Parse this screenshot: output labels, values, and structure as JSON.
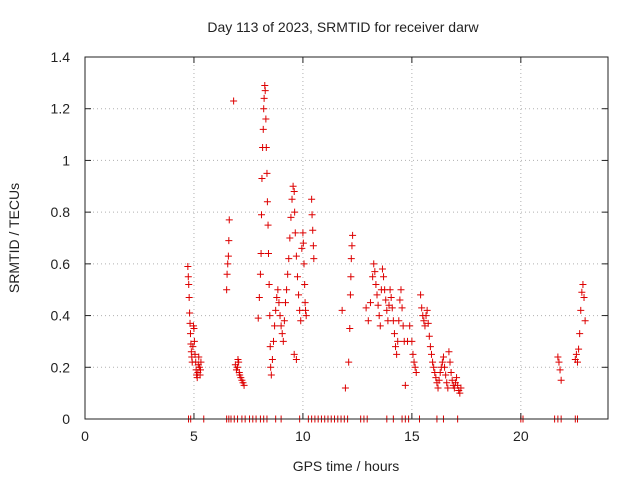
{
  "chart_data": {
    "type": "scatter",
    "title": "Day 113 of 2023, SRMTID for receiver darw",
    "xlabel": "GPS time / hours",
    "ylabel": "SRMTID / TECUs",
    "xlim": [
      0,
      24
    ],
    "ylim": [
      0,
      1.4
    ],
    "xticks": [
      0,
      5,
      10,
      15,
      20
    ],
    "xtick_labels": [
      "0",
      "5",
      "10",
      "15",
      "20"
    ],
    "yticks": [
      0,
      0.2,
      0.4,
      0.6,
      0.8,
      1.0,
      1.2,
      1.4
    ],
    "ytick_labels": [
      "0",
      "0.2",
      "0.4",
      "0.6",
      "0.8",
      "1",
      "1.2",
      "1.4"
    ],
    "grid": true,
    "marker": "+",
    "color": "#dd0000",
    "series": [
      {
        "name": "SRMTID",
        "points": [
          [
            4.72,
            0.59
          ],
          [
            4.74,
            0.55
          ],
          [
            4.76,
            0.52
          ],
          [
            4.78,
            0.47
          ],
          [
            4.8,
            0.41
          ],
          [
            4.82,
            0.37
          ],
          [
            4.84,
            0.33
          ],
          [
            4.86,
            0.29
          ],
          [
            4.88,
            0.26
          ],
          [
            4.9,
            0.24
          ],
          [
            4.92,
            0.22
          ],
          [
            4.95,
            0.28
          ],
          [
            4.98,
            0.36
          ],
          [
            5.0,
            0.35
          ],
          [
            5.02,
            0.3
          ],
          [
            5.05,
            0.25
          ],
          [
            5.08,
            0.22
          ],
          [
            5.1,
            0.19
          ],
          [
            5.12,
            0.17
          ],
          [
            5.15,
            0.16
          ],
          [
            5.18,
            0.18
          ],
          [
            5.2,
            0.21
          ],
          [
            5.22,
            0.24
          ],
          [
            5.25,
            0.2
          ],
          [
            5.28,
            0.17
          ],
          [
            5.3,
            0.19
          ],
          [
            5.32,
            0.22
          ],
          [
            6.5,
            0.5
          ],
          [
            6.52,
            0.56
          ],
          [
            6.55,
            0.6
          ],
          [
            6.58,
            0.63
          ],
          [
            6.6,
            0.69
          ],
          [
            6.62,
            0.77
          ],
          [
            6.82,
            1.23
          ],
          [
            6.9,
            0.21
          ],
          [
            6.95,
            0.19
          ],
          [
            7.0,
            0.2
          ],
          [
            7.02,
            0.23
          ],
          [
            7.05,
            0.22
          ],
          [
            7.08,
            0.18
          ],
          [
            7.1,
            0.17
          ],
          [
            7.15,
            0.16
          ],
          [
            7.2,
            0.15
          ],
          [
            7.25,
            0.14
          ],
          [
            7.3,
            0.13
          ],
          [
            7.95,
            0.39
          ],
          [
            8.0,
            0.47
          ],
          [
            8.05,
            0.56
          ],
          [
            8.08,
            0.64
          ],
          [
            8.1,
            0.79
          ],
          [
            8.12,
            0.93
          ],
          [
            8.15,
            1.05
          ],
          [
            8.18,
            1.12
          ],
          [
            8.2,
            1.2
          ],
          [
            8.22,
            1.24
          ],
          [
            8.25,
            1.29
          ],
          [
            8.27,
            1.27
          ],
          [
            8.3,
            1.16
          ],
          [
            8.32,
            1.05
          ],
          [
            8.35,
            0.95
          ],
          [
            8.37,
            0.84
          ],
          [
            8.4,
            0.75
          ],
          [
            8.42,
            0.64
          ],
          [
            8.45,
            0.52
          ],
          [
            8.48,
            0.4
          ],
          [
            8.5,
            0.28
          ],
          [
            8.52,
            0.2
          ],
          [
            8.55,
            0.17
          ],
          [
            8.6,
            0.23
          ],
          [
            8.65,
            0.3
          ],
          [
            8.7,
            0.36
          ],
          [
            8.75,
            0.42
          ],
          [
            8.8,
            0.47
          ],
          [
            8.85,
            0.5
          ],
          [
            8.9,
            0.45
          ],
          [
            8.95,
            0.4
          ],
          [
            9.0,
            0.36
          ],
          [
            9.05,
            0.33
          ],
          [
            9.1,
            0.3
          ],
          [
            9.15,
            0.38
          ],
          [
            9.2,
            0.45
          ],
          [
            9.25,
            0.5
          ],
          [
            9.3,
            0.56
          ],
          [
            9.35,
            0.62
          ],
          [
            9.4,
            0.7
          ],
          [
            9.45,
            0.78
          ],
          [
            9.5,
            0.85
          ],
          [
            9.55,
            0.9
          ],
          [
            9.6,
            0.88
          ],
          [
            9.62,
            0.8
          ],
          [
            9.65,
            0.72
          ],
          [
            9.7,
            0.63
          ],
          [
            9.75,
            0.55
          ],
          [
            9.8,
            0.48
          ],
          [
            9.85,
            0.42
          ],
          [
            9.9,
            0.38
          ],
          [
            9.95,
            0.66
          ],
          [
            10.0,
            0.72
          ],
          [
            10.02,
            0.68
          ],
          [
            10.05,
            0.6
          ],
          [
            10.08,
            0.52
          ],
          [
            10.1,
            0.45
          ],
          [
            10.12,
            0.42
          ],
          [
            10.15,
            0.4
          ],
          [
            9.6,
            0.25
          ],
          [
            9.7,
            0.23
          ],
          [
            10.4,
            0.85
          ],
          [
            10.42,
            0.79
          ],
          [
            10.45,
            0.73
          ],
          [
            10.48,
            0.67
          ],
          [
            10.5,
            0.62
          ],
          [
            11.8,
            0.42
          ],
          [
            11.95,
            0.12
          ],
          [
            12.1,
            0.22
          ],
          [
            12.15,
            0.35
          ],
          [
            12.18,
            0.48
          ],
          [
            12.2,
            0.55
          ],
          [
            12.22,
            0.62
          ],
          [
            12.25,
            0.67
          ],
          [
            12.28,
            0.71
          ],
          [
            12.9,
            0.43
          ],
          [
            13.0,
            0.38
          ],
          [
            13.1,
            0.45
          ],
          [
            13.2,
            0.55
          ],
          [
            13.25,
            0.6
          ],
          [
            13.3,
            0.57
          ],
          [
            13.35,
            0.52
          ],
          [
            13.4,
            0.48
          ],
          [
            13.45,
            0.44
          ],
          [
            13.5,
            0.4
          ],
          [
            13.55,
            0.36
          ],
          [
            13.6,
            0.5
          ],
          [
            13.65,
            0.58
          ],
          [
            13.7,
            0.55
          ],
          [
            13.75,
            0.5
          ],
          [
            13.8,
            0.46
          ],
          [
            13.85,
            0.42
          ],
          [
            13.9,
            0.38
          ],
          [
            13.95,
            0.44
          ],
          [
            14.0,
            0.5
          ],
          [
            14.05,
            0.47
          ],
          [
            14.1,
            0.43
          ],
          [
            14.15,
            0.38
          ],
          [
            14.2,
            0.33
          ],
          [
            14.25,
            0.28
          ],
          [
            14.3,
            0.25
          ],
          [
            14.35,
            0.3
          ],
          [
            14.4,
            0.38
          ],
          [
            14.45,
            0.46
          ],
          [
            14.5,
            0.5
          ],
          [
            14.55,
            0.43
          ],
          [
            14.6,
            0.36
          ],
          [
            14.65,
            0.3
          ],
          [
            14.7,
            0.13
          ],
          [
            14.8,
            0.3
          ],
          [
            14.9,
            0.36
          ],
          [
            15.0,
            0.3
          ],
          [
            15.05,
            0.25
          ],
          [
            15.1,
            0.22
          ],
          [
            15.15,
            0.2
          ],
          [
            15.2,
            0.18
          ],
          [
            15.4,
            0.48
          ],
          [
            15.45,
            0.43
          ],
          [
            15.5,
            0.4
          ],
          [
            15.55,
            0.38
          ],
          [
            15.6,
            0.36
          ],
          [
            15.65,
            0.4
          ],
          [
            15.7,
            0.42
          ],
          [
            15.75,
            0.37
          ],
          [
            15.8,
            0.32
          ],
          [
            15.85,
            0.28
          ],
          [
            15.9,
            0.25
          ],
          [
            15.95,
            0.22
          ],
          [
            16.0,
            0.2
          ],
          [
            16.05,
            0.18
          ],
          [
            16.1,
            0.16
          ],
          [
            16.15,
            0.14
          ],
          [
            16.2,
            0.12
          ],
          [
            16.25,
            0.15
          ],
          [
            16.3,
            0.18
          ],
          [
            16.35,
            0.2
          ],
          [
            16.4,
            0.22
          ],
          [
            16.45,
            0.24
          ],
          [
            16.5,
            0.2
          ],
          [
            16.55,
            0.17
          ],
          [
            16.6,
            0.14
          ],
          [
            16.65,
            0.12
          ],
          [
            16.7,
            0.26
          ],
          [
            16.75,
            0.22
          ],
          [
            16.8,
            0.18
          ],
          [
            16.85,
            0.15
          ],
          [
            16.9,
            0.13
          ],
          [
            16.95,
            0.12
          ],
          [
            17.0,
            0.14
          ],
          [
            17.05,
            0.16
          ],
          [
            17.1,
            0.13
          ],
          [
            17.15,
            0.11
          ],
          [
            17.2,
            0.1
          ],
          [
            17.25,
            0.12
          ],
          [
            21.7,
            0.24
          ],
          [
            21.75,
            0.22
          ],
          [
            21.8,
            0.19
          ],
          [
            21.85,
            0.15
          ],
          [
            22.5,
            0.23
          ],
          [
            22.55,
            0.25
          ],
          [
            22.6,
            0.22
          ],
          [
            22.65,
            0.27
          ],
          [
            22.7,
            0.33
          ],
          [
            22.75,
            0.42
          ],
          [
            22.8,
            0.49
          ],
          [
            22.85,
            0.52
          ],
          [
            22.9,
            0.47
          ],
          [
            22.95,
            0.38
          ],
          [
            4.75,
            0
          ],
          [
            4.85,
            0
          ],
          [
            5.45,
            0
          ],
          [
            6.5,
            0
          ],
          [
            6.6,
            0
          ],
          [
            6.7,
            0
          ],
          [
            6.85,
            0
          ],
          [
            7.0,
            0
          ],
          [
            7.2,
            0
          ],
          [
            7.35,
            0
          ],
          [
            7.55,
            0
          ],
          [
            7.7,
            0
          ],
          [
            7.85,
            0
          ],
          [
            8.05,
            0
          ],
          [
            8.2,
            0
          ],
          [
            8.35,
            0
          ],
          [
            8.75,
            0
          ],
          [
            9.0,
            0
          ],
          [
            9.85,
            0
          ],
          [
            10.25,
            0
          ],
          [
            10.4,
            0
          ],
          [
            10.55,
            0
          ],
          [
            10.7,
            0
          ],
          [
            10.85,
            0
          ],
          [
            11.0,
            0
          ],
          [
            11.15,
            0
          ],
          [
            11.3,
            0
          ],
          [
            11.45,
            0
          ],
          [
            11.6,
            0
          ],
          [
            11.75,
            0
          ],
          [
            11.9,
            0
          ],
          [
            12.05,
            0
          ],
          [
            12.65,
            0
          ],
          [
            12.8,
            0
          ],
          [
            12.95,
            0
          ],
          [
            13.85,
            0
          ],
          [
            14.15,
            0
          ],
          [
            14.55,
            0
          ],
          [
            14.7,
            0
          ],
          [
            14.85,
            0
          ],
          [
            15.35,
            0
          ],
          [
            16.15,
            0
          ],
          [
            16.45,
            0
          ],
          [
            17.1,
            0
          ],
          [
            20.0,
            0
          ],
          [
            20.1,
            0
          ],
          [
            21.55,
            0
          ],
          [
            21.7,
            0
          ],
          [
            21.85,
            0
          ],
          [
            22.5,
            0
          ],
          [
            22.6,
            0
          ]
        ]
      }
    ]
  }
}
